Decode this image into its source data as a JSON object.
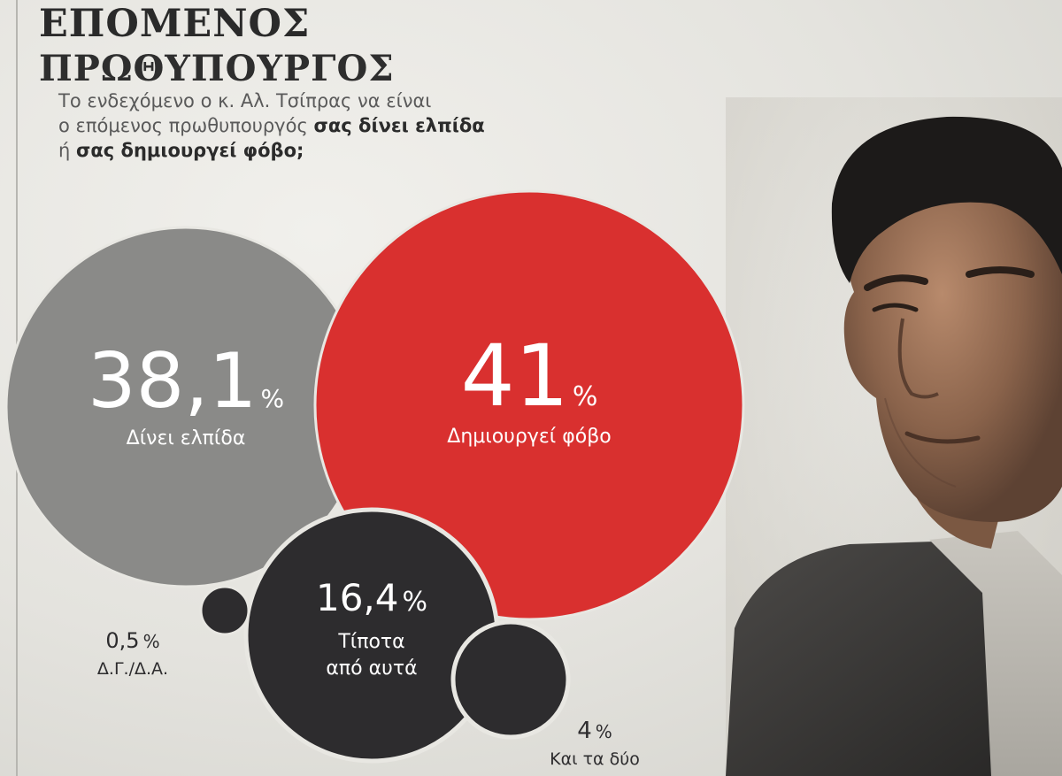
{
  "header": {
    "title_line1": "ΕΠΟΜΕΝΟΣ",
    "title_line2": "ΠΡΩΘΥΠΟΥΡΓΟΣ",
    "question_line1": "Το ενδεχόμενο ο κ. Αλ. Τσίπρας να είναι",
    "question_line2_a": "ο επόμενος πρωθυπουργός ",
    "question_line2_b": "σας δίνει ελπίδα",
    "question_line3_a": "ή ",
    "question_line3_b": "σας δημιουργεί φόβο;"
  },
  "chart_data": {
    "type": "bubble",
    "unit": "%",
    "items": [
      {
        "key": "hope",
        "value_text": "38,1",
        "unit": "%",
        "label": [
          "Δίνει ελπίδα"
        ],
        "value": 38.1,
        "color": "#8a8a88"
      },
      {
        "key": "fear",
        "value_text": "41",
        "unit": "%",
        "label": [
          "Δημιουργεί φόβο"
        ],
        "value": 41,
        "color": "#d9302f"
      },
      {
        "key": "neither",
        "value_text": "16,4",
        "unit": "%",
        "label": [
          "Τίποτα",
          "από αυτά"
        ],
        "value": 16.4,
        "color": "#2d2c2e"
      },
      {
        "key": "dk",
        "value_text": "0,5",
        "unit": "%",
        "label": [
          "Δ.Γ./Δ.Α."
        ],
        "value": 0.5,
        "color": "#2d2c2e"
      },
      {
        "key": "both",
        "value_text": "4",
        "unit": "%",
        "label": [
          "Και τα δύο"
        ],
        "value": 4,
        "color": "#2d2c2e"
      }
    ]
  },
  "colors": {
    "paper": "#e8e7e2",
    "title": "#2a2a2a",
    "grey_bubble": "#8a8a88",
    "red_bubble": "#d9302f",
    "dark_bubble": "#2d2c2e"
  },
  "photo": {
    "icon": "portrait-photo"
  }
}
